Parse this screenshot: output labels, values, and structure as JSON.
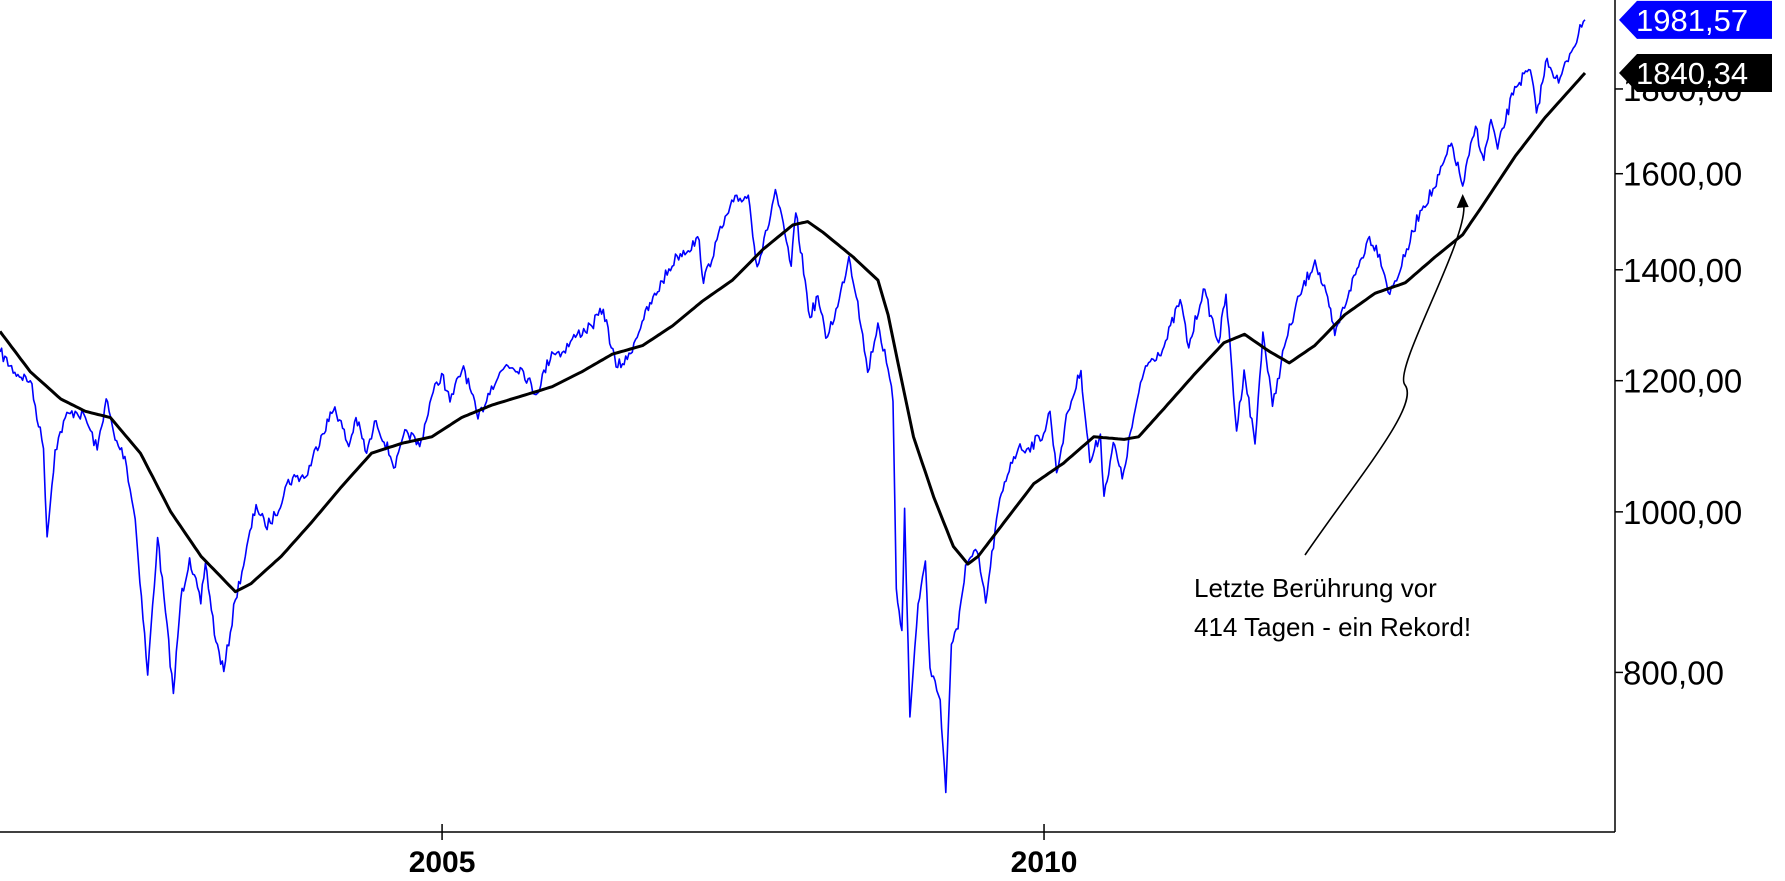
{
  "chart_data": {
    "type": "line",
    "title": "",
    "xlabel": "",
    "ylabel": "",
    "y_scale": "log",
    "grid": false,
    "legend": "none",
    "xlim": [
      "2001-05-01",
      "2014-06-30"
    ],
    "ylim": [
      670,
      2020
    ],
    "x_ticks": [
      {
        "date": "2005-01-01",
        "label": "2005"
      },
      {
        "date": "2010-01-01",
        "label": "2010"
      }
    ],
    "y_ticks": [
      {
        "value": 800,
        "label": "800,00"
      },
      {
        "value": 1000,
        "label": "1000,00"
      },
      {
        "value": 1200,
        "label": "1200,00"
      },
      {
        "value": 1400,
        "label": "1400,00"
      },
      {
        "value": 1600,
        "label": "1600,00"
      },
      {
        "value": 1800,
        "label": "1800,00"
      }
    ],
    "last_value_tags": [
      {
        "series": 0,
        "value": 1981.57,
        "label": "1981,57"
      },
      {
        "series": 1,
        "value": 1840.34,
        "label": "1840,34"
      }
    ],
    "annotation": {
      "lines": [
        "Letzte Berührung vor",
        "414 Tagen - ein Rekord!"
      ],
      "target": {
        "date": "2013-06-24",
        "value": 1573
      }
    },
    "series": [
      {
        "color": "#0000ff",
        "points": [
          [
            "2001-05-01",
            1249
          ],
          [
            "2001-06-15",
            1214
          ],
          [
            "2001-08-01",
            1200
          ],
          [
            "2001-09-10",
            1092
          ],
          [
            "2001-09-21",
            966
          ],
          [
            "2001-10-15",
            1090
          ],
          [
            "2001-11-15",
            1140
          ],
          [
            "2001-12-15",
            1150
          ],
          [
            "2002-01-15",
            1140
          ],
          [
            "2002-02-20",
            1090
          ],
          [
            "2002-03-19",
            1170
          ],
          [
            "2002-04-15",
            1105
          ],
          [
            "2002-05-15",
            1080
          ],
          [
            "2002-06-15",
            990
          ],
          [
            "2002-07-23",
            797
          ],
          [
            "2002-08-22",
            965
          ],
          [
            "2002-09-15",
            870
          ],
          [
            "2002-10-09",
            777
          ],
          [
            "2002-10-31",
            885
          ],
          [
            "2002-11-27",
            938
          ],
          [
            "2002-12-31",
            880
          ],
          [
            "2003-01-14",
            931
          ],
          [
            "2003-02-15",
            835
          ],
          [
            "2003-03-11",
            801
          ],
          [
            "2003-04-15",
            885
          ],
          [
            "2003-05-15",
            940
          ],
          [
            "2003-06-17",
            1010
          ],
          [
            "2003-07-15",
            980
          ],
          [
            "2003-08-15",
            995
          ],
          [
            "2003-09-18",
            1040
          ],
          [
            "2003-10-15",
            1050
          ],
          [
            "2003-11-15",
            1050
          ],
          [
            "2003-12-31",
            1112
          ],
          [
            "2004-02-11",
            1157
          ],
          [
            "2004-03-24",
            1095
          ],
          [
            "2004-04-15",
            1140
          ],
          [
            "2004-05-17",
            1085
          ],
          [
            "2004-06-15",
            1135
          ],
          [
            "2004-08-12",
            1064
          ],
          [
            "2004-09-15",
            1120
          ],
          [
            "2004-10-25",
            1095
          ],
          [
            "2004-11-30",
            1173
          ],
          [
            "2004-12-31",
            1212
          ],
          [
            "2005-01-25",
            1165
          ],
          [
            "2005-03-07",
            1225
          ],
          [
            "2005-04-20",
            1138
          ],
          [
            "2005-05-31",
            1191
          ],
          [
            "2005-07-15",
            1227
          ],
          [
            "2005-08-31",
            1220
          ],
          [
            "2005-10-13",
            1177
          ],
          [
            "2005-11-30",
            1249
          ],
          [
            "2005-12-31",
            1248
          ],
          [
            "2006-02-15",
            1280
          ],
          [
            "2006-03-31",
            1295
          ],
          [
            "2006-05-05",
            1325
          ],
          [
            "2006-06-13",
            1223
          ],
          [
            "2006-07-17",
            1236
          ],
          [
            "2006-08-31",
            1303
          ],
          [
            "2006-10-31",
            1378
          ],
          [
            "2006-12-15",
            1427
          ],
          [
            "2007-02-20",
            1459
          ],
          [
            "2007-03-05",
            1374
          ],
          [
            "2007-04-15",
            1460
          ],
          [
            "2007-06-04",
            1539
          ],
          [
            "2007-07-19",
            1553
          ],
          [
            "2007-08-15",
            1406
          ],
          [
            "2007-09-15",
            1480
          ],
          [
            "2007-10-09",
            1565
          ],
          [
            "2007-11-26",
            1407
          ],
          [
            "2007-12-10",
            1515
          ],
          [
            "2008-01-22",
            1310
          ],
          [
            "2008-02-15",
            1350
          ],
          [
            "2008-03-10",
            1273
          ],
          [
            "2008-04-15",
            1330
          ],
          [
            "2008-05-19",
            1426
          ],
          [
            "2008-06-15",
            1340
          ],
          [
            "2008-07-15",
            1214
          ],
          [
            "2008-08-15",
            1300
          ],
          [
            "2008-09-10",
            1230
          ],
          [
            "2008-09-30",
            1166
          ],
          [
            "2008-10-10",
            899
          ],
          [
            "2008-10-27",
            848
          ],
          [
            "2008-11-04",
            1005
          ],
          [
            "2008-11-20",
            752
          ],
          [
            "2008-12-15",
            880
          ],
          [
            "2009-01-06",
            934
          ],
          [
            "2009-01-20",
            805
          ],
          [
            "2009-02-20",
            770
          ],
          [
            "2009-03-09",
            677
          ],
          [
            "2009-03-26",
            832
          ],
          [
            "2009-04-15",
            850
          ],
          [
            "2009-05-08",
            929
          ],
          [
            "2009-06-12",
            946
          ],
          [
            "2009-07-08",
            881
          ],
          [
            "2009-08-15",
            1004
          ],
          [
            "2009-09-22",
            1071
          ],
          [
            "2009-10-15",
            1092
          ],
          [
            "2009-11-15",
            1093
          ],
          [
            "2009-12-31",
            1115
          ],
          [
            "2010-01-19",
            1150
          ],
          [
            "2010-02-08",
            1056
          ],
          [
            "2010-03-15",
            1150
          ],
          [
            "2010-04-23",
            1217
          ],
          [
            "2010-05-20",
            1071
          ],
          [
            "2010-06-21",
            1114
          ],
          [
            "2010-07-02",
            1022
          ],
          [
            "2010-07-30",
            1101
          ],
          [
            "2010-08-26",
            1047
          ],
          [
            "2010-09-30",
            1141
          ],
          [
            "2010-11-05",
            1225
          ],
          [
            "2010-12-31",
            1258
          ],
          [
            "2011-02-18",
            1343
          ],
          [
            "2011-03-16",
            1256
          ],
          [
            "2011-04-29",
            1363
          ],
          [
            "2011-06-15",
            1265
          ],
          [
            "2011-07-07",
            1353
          ],
          [
            "2011-08-08",
            1119
          ],
          [
            "2011-08-31",
            1218
          ],
          [
            "2011-10-03",
            1099
          ],
          [
            "2011-10-27",
            1284
          ],
          [
            "2011-11-25",
            1158
          ],
          [
            "2011-12-31",
            1258
          ],
          [
            "2012-02-15",
            1350
          ],
          [
            "2012-04-02",
            1419
          ],
          [
            "2012-05-15",
            1330
          ],
          [
            "2012-06-01",
            1278
          ],
          [
            "2012-07-15",
            1360
          ],
          [
            "2012-09-14",
            1466
          ],
          [
            "2012-10-15",
            1430
          ],
          [
            "2012-11-15",
            1353
          ],
          [
            "2012-12-31",
            1426
          ],
          [
            "2013-02-15",
            1520
          ],
          [
            "2013-03-31",
            1569
          ],
          [
            "2013-05-21",
            1669
          ],
          [
            "2013-06-24",
            1573
          ],
          [
            "2013-08-02",
            1709
          ],
          [
            "2013-08-27",
            1630
          ],
          [
            "2013-09-18",
            1725
          ],
          [
            "2013-10-08",
            1656
          ],
          [
            "2013-11-29",
            1806
          ],
          [
            "2014-01-15",
            1848
          ],
          [
            "2014-02-03",
            1741
          ],
          [
            "2014-03-07",
            1878
          ],
          [
            "2014-04-11",
            1815
          ],
          [
            "2014-05-15",
            1890
          ],
          [
            "2014-06-20",
            1962
          ],
          [
            "2014-06-30",
            1981.57
          ]
        ]
      },
      {
        "color": "#000000",
        "points": [
          [
            "2001-05-01",
            1285
          ],
          [
            "2001-08-01",
            1215
          ],
          [
            "2001-11-01",
            1170
          ],
          [
            "2002-01-15",
            1150
          ],
          [
            "2002-04-01",
            1140
          ],
          [
            "2002-07-01",
            1085
          ],
          [
            "2002-10-01",
            1000
          ],
          [
            "2003-01-01",
            940
          ],
          [
            "2003-04-15",
            895
          ],
          [
            "2003-06-01",
            905
          ],
          [
            "2003-09-01",
            940
          ],
          [
            "2003-12-01",
            985
          ],
          [
            "2004-03-01",
            1035
          ],
          [
            "2004-06-01",
            1085
          ],
          [
            "2004-09-01",
            1100
          ],
          [
            "2004-12-01",
            1110
          ],
          [
            "2005-03-01",
            1140
          ],
          [
            "2005-06-01",
            1160
          ],
          [
            "2005-09-01",
            1175
          ],
          [
            "2005-12-01",
            1190
          ],
          [
            "2006-03-01",
            1215
          ],
          [
            "2006-06-01",
            1245
          ],
          [
            "2006-09-01",
            1260
          ],
          [
            "2006-12-01",
            1295
          ],
          [
            "2007-03-01",
            1340
          ],
          [
            "2007-06-01",
            1380
          ],
          [
            "2007-09-01",
            1440
          ],
          [
            "2007-12-01",
            1490
          ],
          [
            "2008-01-15",
            1497
          ],
          [
            "2008-03-01",
            1475
          ],
          [
            "2008-06-01",
            1425
          ],
          [
            "2008-08-15",
            1380
          ],
          [
            "2008-09-15",
            1315
          ],
          [
            "2008-10-15",
            1230
          ],
          [
            "2008-12-01",
            1110
          ],
          [
            "2009-02-01",
            1020
          ],
          [
            "2009-04-01",
            953
          ],
          [
            "2009-05-15",
            930
          ],
          [
            "2009-06-15",
            940
          ],
          [
            "2009-09-01",
            985
          ],
          [
            "2009-12-01",
            1040
          ],
          [
            "2010-03-01",
            1070
          ],
          [
            "2010-06-01",
            1110
          ],
          [
            "2010-09-01",
            1106
          ],
          [
            "2010-10-15",
            1110
          ],
          [
            "2011-01-01",
            1155
          ],
          [
            "2011-04-01",
            1210
          ],
          [
            "2011-07-01",
            1265
          ],
          [
            "2011-09-01",
            1280
          ],
          [
            "2011-11-15",
            1250
          ],
          [
            "2012-01-15",
            1230
          ],
          [
            "2012-04-01",
            1260
          ],
          [
            "2012-07-01",
            1315
          ],
          [
            "2012-10-01",
            1355
          ],
          [
            "2013-01-01",
            1375
          ],
          [
            "2013-04-01",
            1425
          ],
          [
            "2013-06-24",
            1470
          ],
          [
            "2013-09-01",
            1540
          ],
          [
            "2013-12-01",
            1640
          ],
          [
            "2014-03-01",
            1730
          ],
          [
            "2014-06-30",
            1840.34
          ]
        ]
      }
    ]
  }
}
